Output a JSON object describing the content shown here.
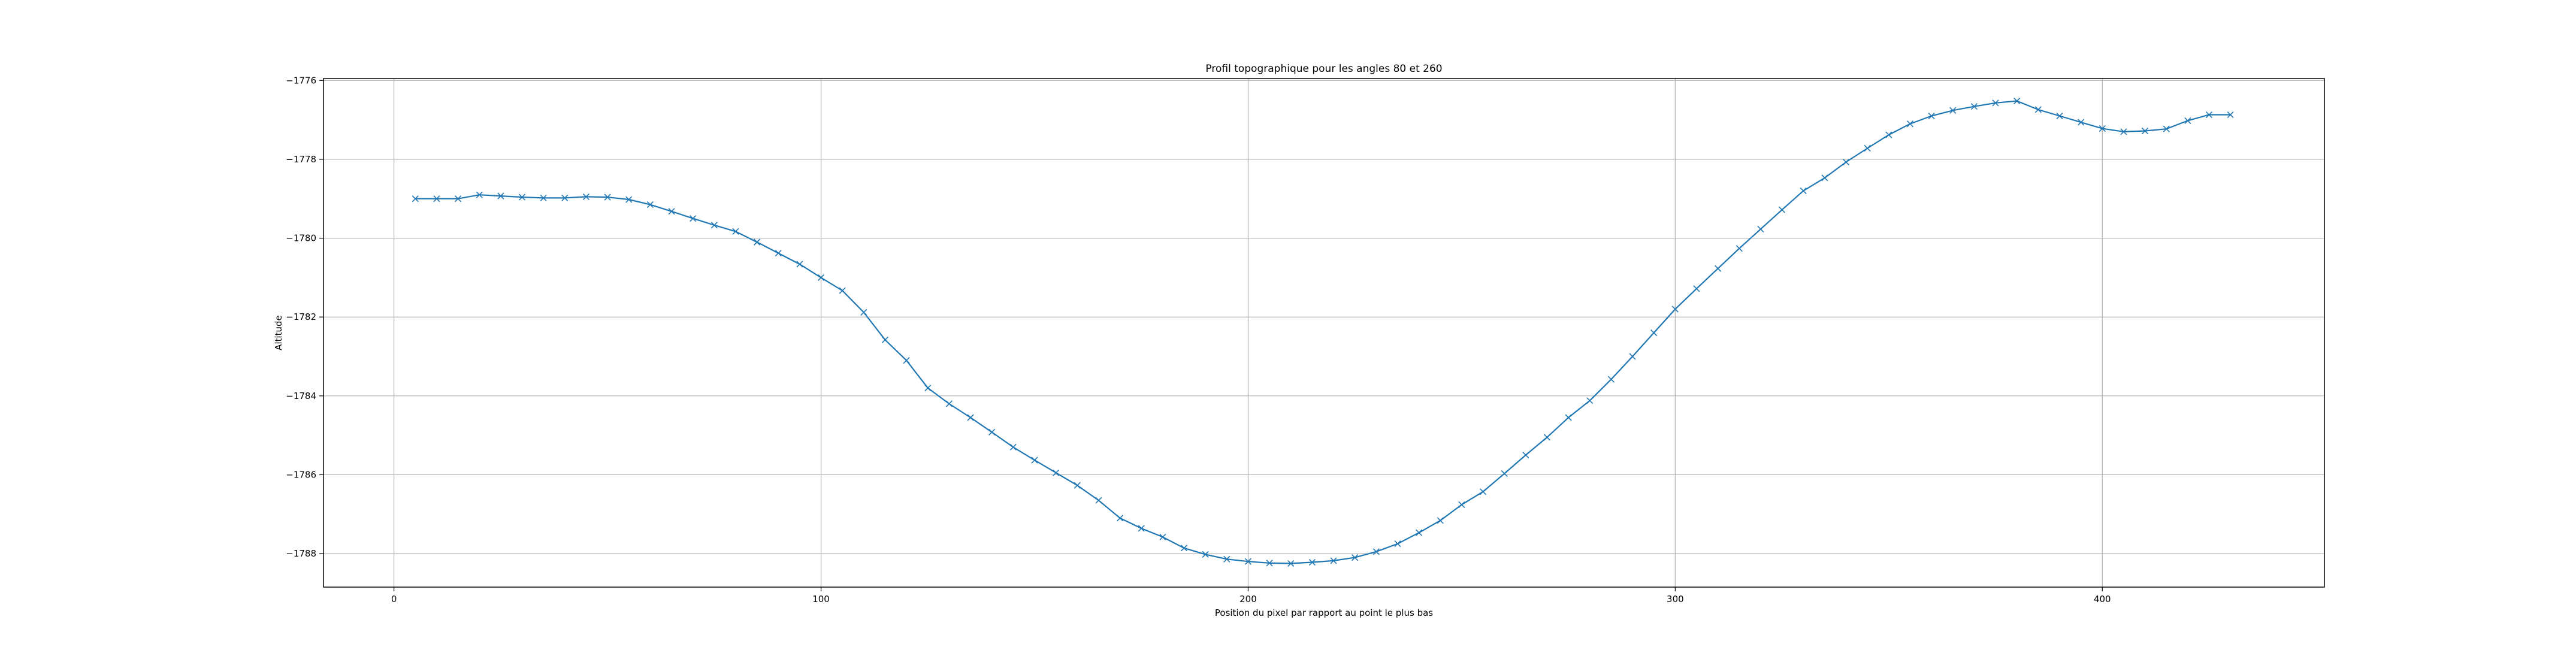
{
  "chart_data": {
    "type": "line",
    "title": "Profil topographique pour les angles 80 et 260",
    "xlabel": "Position du pixel par rapport au point le plus bas",
    "ylabel": "Altitude",
    "xlim": [
      -16.5,
      452
    ],
    "ylim": [
      -1788.85,
      -1775.95
    ],
    "xticks": [
      0,
      100,
      200,
      300,
      400
    ],
    "yticks": [
      -1788,
      -1786,
      -1784,
      -1782,
      -1780,
      -1778,
      -1776
    ],
    "grid": true,
    "marker": "x",
    "color": "#1f77b4",
    "series": [
      {
        "name": "",
        "x": [
          5,
          10,
          15,
          20,
          25,
          30,
          35,
          40,
          45,
          50,
          55,
          60,
          65,
          70,
          75,
          80,
          85,
          90,
          95,
          100,
          105,
          110,
          115,
          120,
          125,
          130,
          135,
          140,
          145,
          150,
          155,
          160,
          165,
          170,
          175,
          180,
          185,
          190,
          195,
          200,
          205,
          210,
          215,
          220,
          225,
          230,
          235,
          240,
          245,
          250,
          255,
          260,
          265,
          270,
          275,
          280,
          285,
          290,
          295,
          300,
          305,
          310,
          315,
          320,
          325,
          330,
          335,
          340,
          345,
          350,
          355,
          360,
          365,
          370,
          375,
          380,
          385,
          390,
          395,
          400,
          405,
          410,
          415,
          420,
          425,
          430
        ],
        "y": [
          -1779.0,
          -1779.0,
          -1779.0,
          -1778.9,
          -1778.93,
          -1778.96,
          -1778.98,
          -1778.98,
          -1778.95,
          -1778.96,
          -1779.02,
          -1779.15,
          -1779.32,
          -1779.5,
          -1779.67,
          -1779.83,
          -1780.1,
          -1780.38,
          -1780.66,
          -1781.0,
          -1781.33,
          -1781.88,
          -1782.58,
          -1783.1,
          -1783.8,
          -1784.2,
          -1784.55,
          -1784.92,
          -1785.3,
          -1785.63,
          -1785.95,
          -1786.27,
          -1786.65,
          -1787.1,
          -1787.36,
          -1787.58,
          -1787.86,
          -1788.02,
          -1788.14,
          -1788.2,
          -1788.24,
          -1788.25,
          -1788.22,
          -1788.18,
          -1788.1,
          -1787.95,
          -1787.75,
          -1787.47,
          -1787.16,
          -1786.76,
          -1786.43,
          -1785.97,
          -1785.5,
          -1785.05,
          -1784.55,
          -1784.12,
          -1783.58,
          -1783.0,
          -1782.4,
          -1781.8,
          -1781.28,
          -1780.77,
          -1780.26,
          -1779.77,
          -1779.28,
          -1778.8,
          -1778.47,
          -1778.07,
          -1777.72,
          -1777.38,
          -1777.1,
          -1776.9,
          -1776.76,
          -1776.66,
          -1776.57,
          -1776.52,
          -1776.74,
          -1776.9,
          -1777.06,
          -1777.22,
          -1777.3,
          -1777.28,
          -1777.23,
          -1777.02,
          -1776.87,
          -1776.87
        ]
      }
    ]
  }
}
